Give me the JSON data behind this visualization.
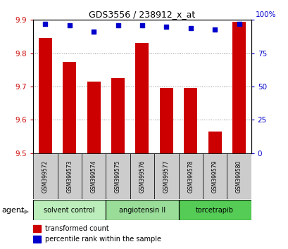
{
  "title": "GDS3556 / 238912_x_at",
  "samples": [
    "GSM399572",
    "GSM399573",
    "GSM399574",
    "GSM399575",
    "GSM399576",
    "GSM399577",
    "GSM399578",
    "GSM399579",
    "GSM399580"
  ],
  "bar_values": [
    9.845,
    9.775,
    9.715,
    9.725,
    9.83,
    9.695,
    9.695,
    9.565,
    9.895
  ],
  "percentile_values": [
    97,
    96,
    91,
    96,
    96,
    95,
    94,
    93,
    97
  ],
  "ylim_left": [
    9.5,
    9.9
  ],
  "ylim_right": [
    0,
    100
  ],
  "yticks_left": [
    9.5,
    9.6,
    9.7,
    9.8,
    9.9
  ],
  "yticks_right": [
    0,
    25,
    50,
    75,
    100
  ],
  "bar_color": "#cc0000",
  "dot_color": "#0000cc",
  "groups": [
    {
      "label": "solvent control",
      "indices": [
        0,
        1,
        2
      ],
      "color": "#bbeebb"
    },
    {
      "label": "angiotensin II",
      "indices": [
        3,
        4,
        5
      ],
      "color": "#99dd99"
    },
    {
      "label": "torcetrapib",
      "indices": [
        6,
        7,
        8
      ],
      "color": "#55cc55"
    }
  ],
  "agent_label": "agent",
  "legend_bar_label": "transformed count",
  "legend_dot_label": "percentile rank within the sample",
  "background_color": "#ffffff",
  "ylabel_left_color": "#cc0000",
  "ylabel_right_color": "#0000cc",
  "sample_box_color": "#cccccc",
  "title_fontsize": 9,
  "tick_fontsize": 7.5,
  "sample_fontsize": 5.5,
  "group_fontsize": 7,
  "legend_fontsize": 7
}
